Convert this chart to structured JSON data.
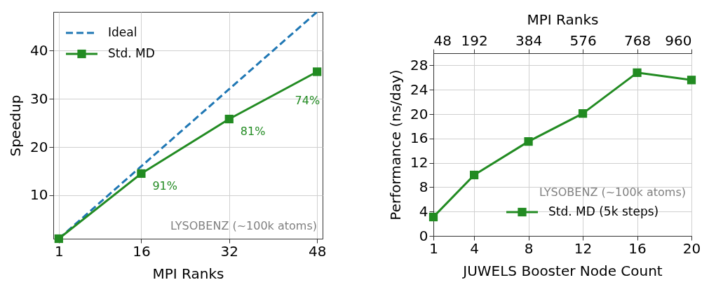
{
  "chart_data": [
    {
      "type": "line",
      "xlabel": "MPI Ranks",
      "ylabel": "Speedup",
      "xlim": [
        0,
        49
      ],
      "xticks": [
        1,
        16,
        32,
        48
      ],
      "ylim": [
        1,
        48
      ],
      "yticks": [
        10,
        20,
        30,
        40
      ],
      "grid": true,
      "legend": "top left",
      "series": [
        {
          "name": "Ideal",
          "color": "#1f77b4",
          "x": [
            1,
            48
          ],
          "values": [
            1,
            48
          ],
          "line_style": "dashed",
          "marker": "none"
        },
        {
          "name": "Std. MD",
          "color": "#228b22",
          "x": [
            1,
            16,
            32,
            48
          ],
          "values": [
            1,
            14.5,
            25.8,
            35.6
          ],
          "line_style": "solid",
          "marker": "square"
        }
      ],
      "annotations": [
        {
          "text": "91%",
          "x": 16,
          "y": 14.5
        },
        {
          "text": "81%",
          "x": 32,
          "y": 25.8
        },
        {
          "text": "74%",
          "x": 48,
          "y": 35.6
        },
        "LYSOBENZ (~100k atoms)"
      ]
    },
    {
      "type": "line",
      "xlabel": "JUWELS Booster Node Count",
      "ylabel": "Performance (ns/day)",
      "x2label": "MPI Ranks",
      "xlim": [
        1,
        20
      ],
      "xticks": [
        1,
        4,
        8,
        12,
        16,
        20
      ],
      "x2lim": [
        48,
        960
      ],
      "x2ticks": [
        48,
        192,
        384,
        576,
        768,
        960
      ],
      "ylim": [
        0,
        30
      ],
      "yticks": [
        0,
        4,
        8,
        12,
        16,
        20,
        24,
        28
      ],
      "grid": true,
      "legend": "bottom right",
      "series": [
        {
          "name": "Std. MD (5k steps)",
          "color": "#228b22",
          "x": [
            1,
            4,
            8,
            12,
            16,
            20
          ],
          "values": [
            3.1,
            10.0,
            15.5,
            20.1,
            26.8,
            25.6
          ],
          "line_style": "solid",
          "marker": "square"
        }
      ],
      "annotations": [
        "LYSOBENZ (~100k atoms)"
      ]
    }
  ]
}
